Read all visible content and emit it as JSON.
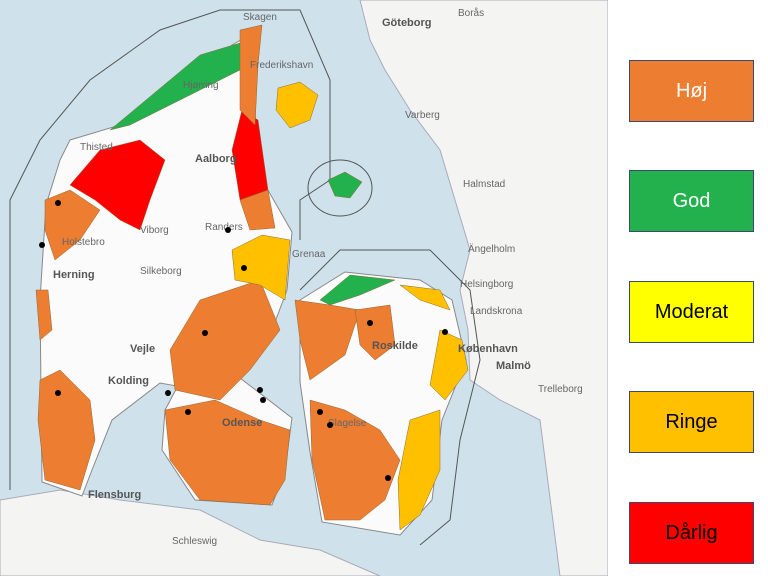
{
  "legend": {
    "items": [
      {
        "label": "Høj",
        "color": "#ed7d31"
      },
      {
        "label": "God",
        "color": "#22b14c"
      },
      {
        "label": "Moderat",
        "color": "#ffff00"
      },
      {
        "label": "Ringe",
        "color": "#ffc000"
      },
      {
        "label": "Dårlig",
        "color": "#ff0000"
      }
    ]
  },
  "map": {
    "places": [
      "Skagen",
      "Göteborg",
      "Borås",
      "Frederikshavn",
      "Hjørring",
      "Varberg",
      "Thisted",
      "Aalborg",
      "Halmstad",
      "Viborg",
      "Randers",
      "Holstebro",
      "Grenaa",
      "Ängelholm",
      "Herning",
      "Silkeborg",
      "Helsingborg",
      "Landskrona",
      "Vejle",
      "Roskilde",
      "København",
      "Malmö",
      "Kolding",
      "Trelleborg",
      "Odense",
      "Slagelse",
      "Flensburg",
      "Schleswig"
    ]
  }
}
